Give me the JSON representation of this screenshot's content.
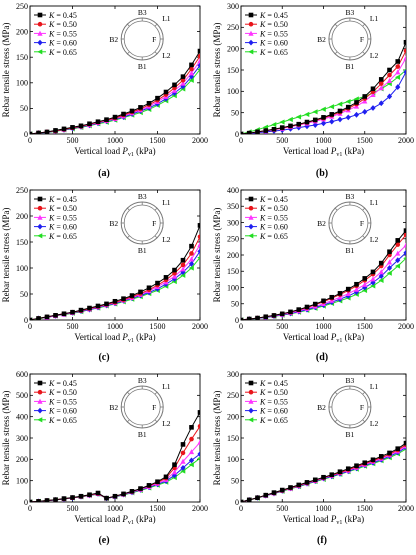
{
  "colors": {
    "K=0.45": "#000000",
    "K=0.50": "#e8141b",
    "K=0.55": "#ff33ff",
    "K=0.60": "#1f1ff0",
    "K=0.65": "#22dd22",
    "tube": "#777777"
  },
  "inset_labels": {
    "top": "B3",
    "left": "B2",
    "bottom": "B1",
    "upper_right": "L1",
    "right": "F",
    "lower_right": "L2"
  },
  "chart_data": [
    {
      "type": "line",
      "caption": "(a)",
      "xlabel": "Vertical load P_v1 (kPa)",
      "ylabel": "Rebar tensile stress (MPa)",
      "xlim": [
        0,
        2000
      ],
      "ylim": [
        0,
        250
      ],
      "xticks": [
        0,
        500,
        1000,
        1500,
        2000
      ],
      "yticks": [
        0,
        50,
        100,
        150,
        200,
        250
      ],
      "legend": "top-left",
      "x": [
        0,
        100,
        200,
        300,
        400,
        500,
        600,
        700,
        800,
        900,
        1000,
        1100,
        1200,
        1300,
        1400,
        1500,
        1600,
        1700,
        1800,
        1900,
        2000
      ],
      "series": [
        {
          "name": "K = 0.45",
          "color_key": "K=0.45",
          "marker": "square",
          "values": [
            0,
            2,
            4,
            7,
            10,
            13,
            16,
            20,
            24,
            28,
            33,
            39,
            45,
            52,
            60,
            70,
            82,
            96,
            112,
            135,
            162
          ]
        },
        {
          "name": "K = 0.50",
          "color_key": "K=0.50",
          "marker": "circle",
          "values": [
            0,
            2,
            4,
            6,
            9,
            12,
            15,
            19,
            23,
            27,
            31,
            37,
            43,
            49,
            57,
            66,
            77,
            90,
            105,
            127,
            152
          ]
        },
        {
          "name": "K = 0.55",
          "color_key": "K=0.55",
          "marker": "triangle-up",
          "values": [
            0,
            2,
            4,
            6,
            9,
            12,
            15,
            18,
            22,
            26,
            30,
            35,
            41,
            47,
            54,
            63,
            73,
            85,
            99,
            119,
            143
          ]
        },
        {
          "name": "K = 0.60",
          "color_key": "K=0.60",
          "marker": "diamond",
          "values": [
            0,
            2,
            3,
            6,
            8,
            11,
            14,
            17,
            21,
            25,
            29,
            33,
            39,
            45,
            51,
            59,
            69,
            80,
            93,
            112,
            134
          ]
        },
        {
          "name": "K = 0.65",
          "color_key": "K=0.65",
          "marker": "triangle-left",
          "values": [
            0,
            2,
            3,
            5,
            8,
            10,
            13,
            16,
            20,
            23,
            27,
            32,
            37,
            42,
            48,
            56,
            65,
            75,
            88,
            105,
            126
          ]
        }
      ]
    },
    {
      "type": "line",
      "caption": "(b)",
      "xlabel": "Vertical load P_v1 (kPa)",
      "ylabel": "Rebar tensile stress (MPa)",
      "xlim": [
        0,
        2000
      ],
      "ylim": [
        0,
        300
      ],
      "xticks": [
        0,
        500,
        1000,
        1500,
        2000
      ],
      "yticks": [
        0,
        50,
        100,
        150,
        200,
        250,
        300
      ],
      "legend": "top-left",
      "x": [
        0,
        100,
        200,
        300,
        400,
        500,
        600,
        700,
        800,
        900,
        1000,
        1100,
        1200,
        1300,
        1400,
        1500,
        1600,
        1700,
        1800,
        1900,
        2000
      ],
      "series": [
        {
          "name": "K = 0.45",
          "color_key": "K=0.45",
          "marker": "square",
          "values": [
            0,
            2,
            5,
            8,
            11,
            15,
            19,
            23,
            28,
            33,
            39,
            46,
            54,
            63,
            74,
            88,
            106,
            128,
            150,
            170,
            215
          ]
        },
        {
          "name": "K = 0.50",
          "color_key": "K=0.50",
          "marker": "circle",
          "values": [
            0,
            2,
            5,
            8,
            11,
            14,
            18,
            22,
            27,
            32,
            37,
            44,
            51,
            60,
            70,
            83,
            99,
            118,
            138,
            158,
            195
          ]
        },
        {
          "name": "K = 0.55",
          "color_key": "K=0.55",
          "marker": "triangle-up",
          "values": [
            0,
            2,
            4,
            7,
            10,
            13,
            17,
            21,
            25,
            30,
            35,
            41,
            48,
            56,
            65,
            77,
            92,
            108,
            125,
            145,
            178
          ]
        },
        {
          "name": "K = 0.60",
          "color_key": "K=0.60",
          "marker": "diamond",
          "values": [
            0,
            1,
            3,
            5,
            7,
            9,
            12,
            15,
            18,
            21,
            25,
            29,
            34,
            39,
            45,
            52,
            61,
            72,
            88,
            110,
            145
          ]
        },
        {
          "name": "K = 0.65",
          "color_key": "K=0.65",
          "marker": "triangle-left",
          "values": [
            0,
            5,
            10,
            16,
            22,
            28,
            34,
            40,
            46,
            52,
            58,
            64,
            70,
            76,
            82,
            88,
            96,
            106,
            118,
            133,
            150
          ]
        }
      ]
    },
    {
      "type": "line",
      "caption": "(c)",
      "xlabel": "Vertical load P_v1 (kPa)",
      "ylabel": "Rebar tensile stress (MPa)",
      "xlim": [
        0,
        2000
      ],
      "ylim": [
        0,
        250
      ],
      "xticks": [
        0,
        500,
        1000,
        1500,
        2000
      ],
      "yticks": [
        0,
        50,
        100,
        150,
        200,
        250
      ],
      "legend": "top-left",
      "x": [
        0,
        100,
        200,
        300,
        400,
        500,
        600,
        700,
        800,
        900,
        1000,
        1100,
        1200,
        1300,
        1400,
        1500,
        1600,
        1700,
        1800,
        1900,
        2000
      ],
      "series": [
        {
          "name": "K = 0.45",
          "color_key": "K=0.45",
          "marker": "square",
          "values": [
            0,
            3,
            6,
            9,
            12,
            15,
            19,
            23,
            27,
            31,
            36,
            41,
            47,
            54,
            62,
            71,
            82,
            96,
            115,
            142,
            182
          ]
        },
        {
          "name": "K = 0.50",
          "color_key": "K=0.50",
          "marker": "circle",
          "values": [
            0,
            3,
            6,
            9,
            12,
            15,
            18,
            22,
            26,
            30,
            34,
            39,
            45,
            51,
            58,
            67,
            77,
            90,
            106,
            128,
            160
          ]
        },
        {
          "name": "K = 0.55",
          "color_key": "K=0.55",
          "marker": "triangle-up",
          "values": [
            0,
            3,
            5,
            8,
            11,
            14,
            18,
            21,
            25,
            29,
            33,
            38,
            43,
            49,
            56,
            64,
            73,
            84,
            98,
            117,
            145
          ]
        },
        {
          "name": "K = 0.60",
          "color_key": "K=0.60",
          "marker": "diamond",
          "values": [
            0,
            3,
            5,
            8,
            11,
            14,
            17,
            20,
            24,
            28,
            32,
            37,
            42,
            47,
            53,
            60,
            69,
            79,
            92,
            108,
            132
          ]
        },
        {
          "name": "K = 0.65",
          "color_key": "K=0.65",
          "marker": "triangle-left",
          "values": [
            0,
            2,
            5,
            8,
            10,
            13,
            16,
            20,
            23,
            27,
            31,
            35,
            40,
            45,
            51,
            57,
            65,
            74,
            86,
            100,
            120
          ]
        }
      ]
    },
    {
      "type": "line",
      "caption": "(d)",
      "xlabel": "Vertical load P_v1 (kPa)",
      "ylabel": "Rebar tensile stress (MPa)",
      "xlim": [
        0,
        2000
      ],
      "ylim": [
        0,
        400
      ],
      "xticks": [
        0,
        500,
        1000,
        1500,
        2000
      ],
      "yticks": [
        0,
        50,
        100,
        150,
        200,
        250,
        300,
        350,
        400
      ],
      "legend": "top-left",
      "x": [
        0,
        100,
        200,
        300,
        400,
        500,
        600,
        700,
        800,
        900,
        1000,
        1100,
        1200,
        1300,
        1400,
        1500,
        1600,
        1700,
        1800,
        1900,
        2000
      ],
      "series": [
        {
          "name": "K = 0.45",
          "color_key": "K=0.45",
          "marker": "square",
          "values": [
            0,
            3,
            6,
            10,
            14,
            19,
            25,
            32,
            40,
            49,
            59,
            70,
            82,
            95,
            110,
            128,
            148,
            175,
            210,
            245,
            275
          ]
        },
        {
          "name": "K = 0.50",
          "color_key": "K=0.50",
          "marker": "circle",
          "values": [
            0,
            3,
            6,
            10,
            14,
            19,
            24,
            31,
            38,
            47,
            56,
            67,
            78,
            91,
            105,
            122,
            141,
            166,
            200,
            232,
            262
          ]
        },
        {
          "name": "K = 0.55",
          "color_key": "K=0.55",
          "marker": "triangle-up",
          "values": [
            0,
            3,
            6,
            9,
            13,
            17,
            22,
            28,
            35,
            42,
            50,
            60,
            70,
            81,
            94,
            109,
            126,
            148,
            178,
            205,
            230
          ]
        },
        {
          "name": "K = 0.60",
          "color_key": "K=0.60",
          "marker": "diamond",
          "values": [
            0,
            3,
            5,
            8,
            12,
            16,
            20,
            26,
            32,
            39,
            46,
            55,
            64,
            74,
            86,
            100,
            115,
            135,
            160,
            184,
            207
          ]
        },
        {
          "name": "K = 0.65",
          "color_key": "K=0.65",
          "marker": "triangle-left",
          "values": [
            0,
            2,
            5,
            8,
            11,
            15,
            19,
            24,
            30,
            36,
            43,
            51,
            59,
            68,
            79,
            91,
            105,
            122,
            144,
            166,
            190
          ]
        }
      ]
    },
    {
      "type": "line",
      "caption": "(e)",
      "xlabel": "Vertical load P_v1 (kPa)",
      "ylabel": "Rebar tensile stress (MPa)",
      "xlim": [
        0,
        2000
      ],
      "ylim": [
        0,
        600
      ],
      "xticks": [
        0,
        500,
        1000,
        1500,
        2000
      ],
      "yticks": [
        0,
        100,
        200,
        300,
        400,
        500,
        600
      ],
      "legend": "top-left",
      "x": [
        0,
        100,
        200,
        300,
        400,
        500,
        600,
        700,
        800,
        900,
        1000,
        1100,
        1200,
        1300,
        1400,
        1500,
        1600,
        1700,
        1800,
        1900,
        2000
      ],
      "series": [
        {
          "name": "K = 0.45",
          "color_key": "K=0.45",
          "marker": "square",
          "values": [
            0,
            3,
            7,
            11,
            16,
            21,
            27,
            34,
            42,
            18,
            27,
            38,
            50,
            63,
            78,
            95,
            118,
            175,
            270,
            350,
            420
          ]
        },
        {
          "name": "K = 0.50",
          "color_key": "K=0.50",
          "marker": "circle",
          "values": [
            0,
            3,
            7,
            11,
            15,
            20,
            26,
            33,
            40,
            18,
            27,
            37,
            49,
            62,
            76,
            92,
            112,
            160,
            230,
            295,
            355
          ]
        },
        {
          "name": "K = 0.55",
          "color_key": "K=0.55",
          "marker": "triangle-up",
          "values": [
            0,
            3,
            6,
            10,
            15,
            20,
            26,
            32,
            39,
            18,
            26,
            36,
            47,
            59,
            72,
            87,
            105,
            140,
            190,
            235,
            280
          ]
        },
        {
          "name": "K = 0.60",
          "color_key": "K=0.60",
          "marker": "diamond",
          "values": [
            0,
            3,
            6,
            10,
            14,
            19,
            25,
            31,
            38,
            17,
            25,
            35,
            45,
            57,
            69,
            83,
            98,
            125,
            160,
            195,
            225
          ]
        },
        {
          "name": "K = 0.65",
          "color_key": "K=0.65",
          "marker": "triangle-left",
          "values": [
            0,
            3,
            6,
            10,
            14,
            19,
            24,
            30,
            37,
            17,
            24,
            33,
            43,
            54,
            66,
            79,
            93,
            115,
            145,
            175,
            205
          ]
        }
      ]
    },
    {
      "type": "line",
      "caption": "(f)",
      "xlabel": "Vertical load P_v1 (kPa)",
      "ylabel": "Rebar tensile stress (MPa)",
      "xlim": [
        0,
        2000
      ],
      "ylim": [
        0,
        300
      ],
      "xticks": [
        0,
        500,
        1000,
        1500,
        2000
      ],
      "yticks": [
        0,
        50,
        100,
        150,
        200,
        250,
        300
      ],
      "legend": "top-left",
      "x": [
        0,
        100,
        200,
        300,
        400,
        500,
        600,
        700,
        800,
        900,
        1000,
        1100,
        1200,
        1300,
        1400,
        1500,
        1600,
        1700,
        1800,
        1900,
        2000
      ],
      "series": [
        {
          "name": "K = 0.45",
          "color_key": "K=0.45",
          "marker": "square",
          "values": [
            0,
            5,
            10,
            16,
            22,
            28,
            34,
            40,
            46,
            52,
            58,
            64,
            71,
            78,
            85,
            92,
            99,
            107,
            115,
            125,
            138
          ]
        },
        {
          "name": "K = 0.50",
          "color_key": "K=0.50",
          "marker": "circle",
          "values": [
            0,
            5,
            10,
            16,
            21,
            27,
            33,
            39,
            45,
            51,
            57,
            63,
            69,
            76,
            83,
            90,
            97,
            104,
            112,
            122,
            134
          ]
        },
        {
          "name": "K = 0.55",
          "color_key": "K=0.55",
          "marker": "triangle-up",
          "values": [
            0,
            5,
            10,
            15,
            21,
            27,
            32,
            38,
            44,
            50,
            56,
            62,
            68,
            74,
            81,
            88,
            95,
            102,
            110,
            119,
            131
          ]
        },
        {
          "name": "K = 0.60",
          "color_key": "K=0.60",
          "marker": "diamond",
          "values": [
            0,
            5,
            10,
            15,
            20,
            26,
            32,
            37,
            43,
            49,
            55,
            60,
            66,
            72,
            79,
            86,
            92,
            99,
            107,
            116,
            128
          ]
        },
        {
          "name": "K = 0.65",
          "color_key": "K=0.65",
          "marker": "triangle-left",
          "values": [
            0,
            5,
            9,
            15,
            20,
            25,
            31,
            36,
            42,
            48,
            53,
            59,
            65,
            71,
            77,
            84,
            90,
            97,
            104,
            113,
            124
          ]
        }
      ]
    }
  ]
}
